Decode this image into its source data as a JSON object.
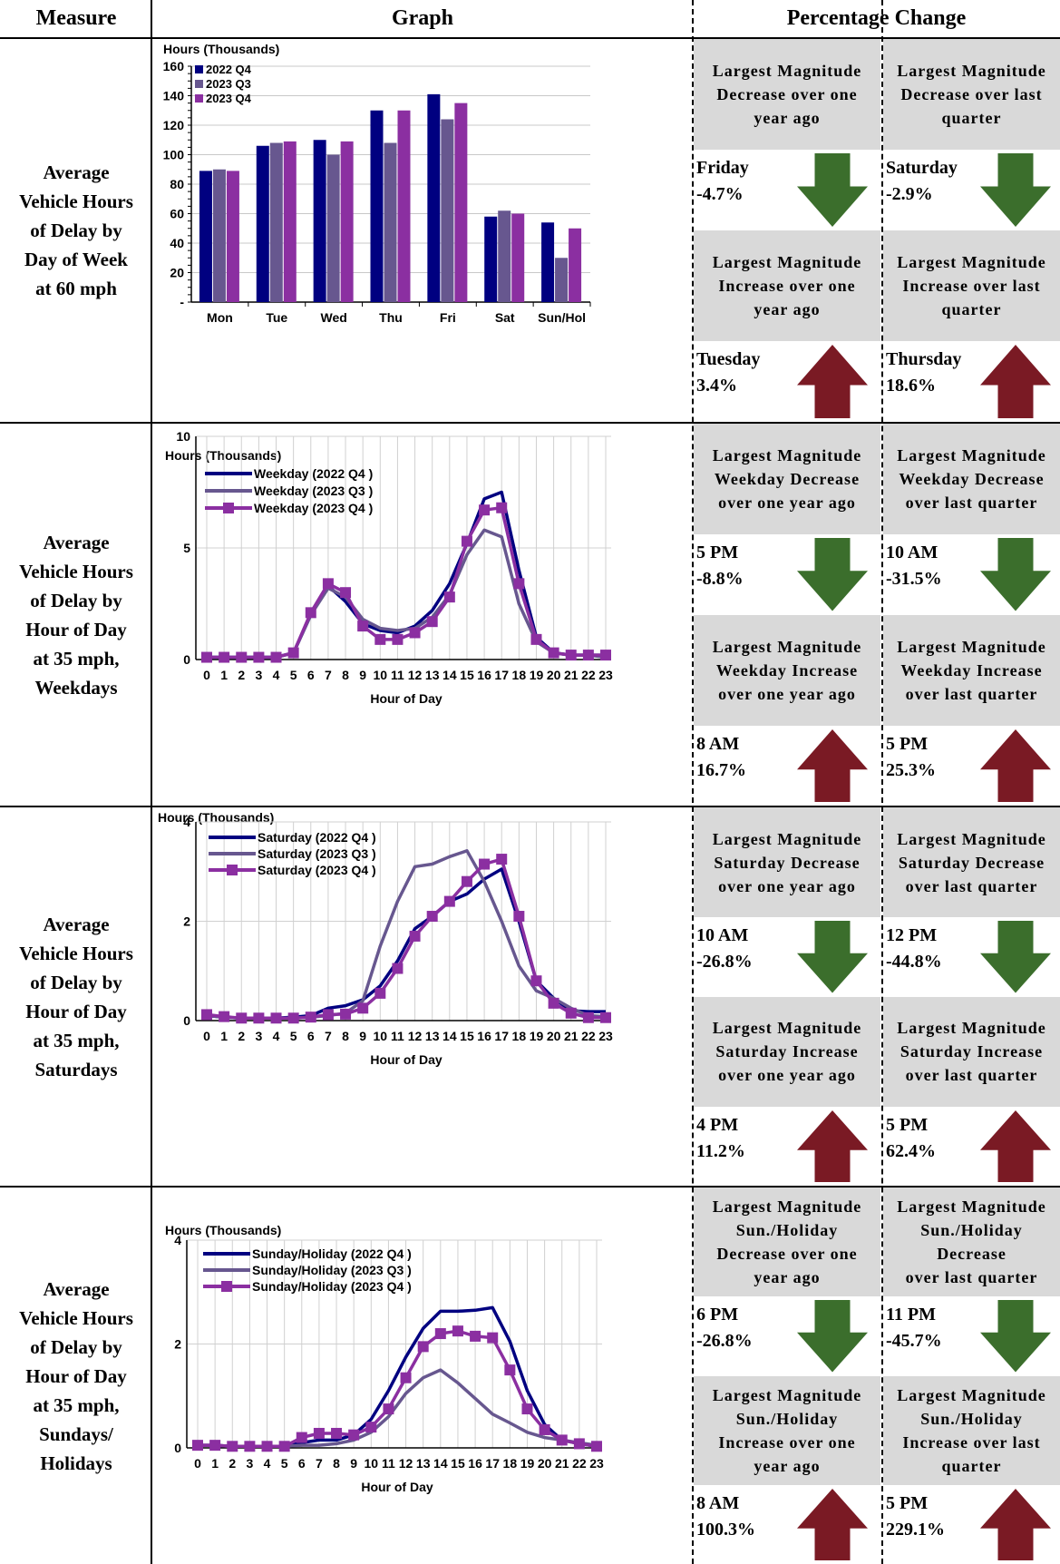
{
  "header": {
    "measure": "Measure",
    "graph": "Graph",
    "percentage": "Percentage Change"
  },
  "colors": {
    "q4_2022": "#000080",
    "q3_2023": "#67578f",
    "q4_2023": "#8b2fa1",
    "down": "#3b6e2c",
    "up": "#7a1a24",
    "box": "#d9d9d9"
  },
  "rows": [
    {
      "measure": "Average\nVehicle Hours\nof Delay by\nDay of Week\nat 60 mph",
      "boxes": [
        {
          "label": "Largest Magnitude\nDecrease over one\nyear ago",
          "value": "Friday\n-4.7%",
          "arrow": "down-arrow-icon"
        },
        {
          "label": "Largest Magnitude\nDecrease over last\nquarter",
          "value": "Saturday\n-2.9%",
          "arrow": "down-arrow-icon"
        },
        {
          "label": "Largest Magnitude\nIncrease over one\nyear ago",
          "value": "Tuesday\n3.4%",
          "arrow": "up-arrow-icon"
        },
        {
          "label": "Largest Magnitude\nIncrease over last\nquarter",
          "value": "Thursday\n18.6%",
          "arrow": "up-arrow-icon"
        }
      ]
    },
    {
      "measure": "Average\nVehicle Hours\nof Delay by\nHour of Day\nat 35 mph,\nWeekdays",
      "boxes": [
        {
          "label": "Largest Magnitude\nWeekday Decrease\nover one year ago",
          "value": "5 PM\n-8.8%",
          "arrow": "down-arrow-icon"
        },
        {
          "label": "Largest Magnitude\nWeekday Decrease\nover last quarter",
          "value": "10 AM\n-31.5%",
          "arrow": "down-arrow-icon"
        },
        {
          "label": "Largest Magnitude\nWeekday Increase\nover one year ago",
          "value": "8 AM\n16.7%",
          "arrow": "up-arrow-icon"
        },
        {
          "label": "Largest Magnitude\nWeekday Increase\nover last quarter",
          "value": "5 PM\n25.3%",
          "arrow": "up-arrow-icon"
        }
      ]
    },
    {
      "measure": "Average\nVehicle Hours\nof Delay by\nHour of Day\nat 35 mph,\nSaturdays",
      "boxes": [
        {
          "label": "Largest Magnitude\nSaturday Decrease\nover one year ago",
          "value": "10 AM\n-26.8%",
          "arrow": "down-arrow-icon"
        },
        {
          "label": "Largest Magnitude\nSaturday Decrease\nover last quarter",
          "value": "12 PM\n-44.8%",
          "arrow": "down-arrow-icon"
        },
        {
          "label": "Largest Magnitude\nSaturday Increase\nover one year ago",
          "value": "4 PM\n11.2%",
          "arrow": "up-arrow-icon"
        },
        {
          "label": "Largest Magnitude\nSaturday Increase\nover last quarter",
          "value": "5 PM\n62.4%",
          "arrow": "up-arrow-icon"
        }
      ]
    },
    {
      "measure": "Average\nVehicle Hours\nof Delay by\nHour of Day\nat 35 mph,\nSundays/\nHolidays",
      "boxes": [
        {
          "label": "Largest Magnitude\nSun./Holiday\nDecrease over one\nyear ago",
          "value": "6 PM\n-26.8%",
          "arrow": "down-arrow-icon"
        },
        {
          "label": "Largest Magnitude\nSun./Holiday\nDecrease\nover last quarter",
          "value": "11 PM\n-45.7%",
          "arrow": "down-arrow-icon"
        },
        {
          "label": "Largest Magnitude\nSun./Holiday\nIncrease over one\nyear ago",
          "value": "8 AM\n100.3%",
          "arrow": "up-arrow-icon"
        },
        {
          "label": "Largest Magnitude\nSun./Holiday\nIncrease over last\nquarter",
          "value": "5 PM\n229.1%",
          "arrow": "up-arrow-icon"
        }
      ]
    }
  ],
  "chart_data": [
    {
      "type": "bar",
      "ylabel": "Hours (Thousands)",
      "categories": [
        "Mon",
        "Tue",
        "Wed",
        "Thu",
        "Fri",
        "Sat",
        "Sun/Hol"
      ],
      "ylim": [
        0,
        160
      ],
      "yticks": [
        "-",
        "20",
        "40",
        "60",
        "80",
        "100",
        "120",
        "140",
        "160"
      ],
      "grid": true,
      "legend": "top-left",
      "series": [
        {
          "name": "2022 Q4",
          "values": [
            89,
            106,
            110,
            130,
            141,
            58,
            54
          ]
        },
        {
          "name": "2023 Q3",
          "values": [
            90,
            108,
            100,
            108,
            124,
            62,
            30
          ]
        },
        {
          "name": "2023 Q4",
          "values": [
            89,
            109,
            109,
            130,
            135,
            60,
            50
          ]
        }
      ]
    },
    {
      "type": "line",
      "ylabel": "Hours (Thousands)",
      "xlabel": "Hour of Day",
      "x": [
        0,
        1,
        2,
        3,
        4,
        5,
        6,
        7,
        8,
        9,
        10,
        11,
        12,
        13,
        14,
        15,
        16,
        17,
        18,
        19,
        20,
        21,
        22,
        23
      ],
      "ylim": [
        0,
        10
      ],
      "yticks": [
        "0",
        "5",
        "10"
      ],
      "grid": true,
      "legend": "top-left",
      "series": [
        {
          "name": "Weekday (2022 Q4 )",
          "values": [
            0.1,
            0.1,
            0.1,
            0.1,
            0.1,
            0.3,
            2.0,
            3.3,
            2.6,
            1.6,
            1.3,
            1.2,
            1.5,
            2.2,
            3.4,
            5.2,
            7.2,
            7.5,
            4.0,
            1.0,
            0.3,
            0.2,
            0.2,
            0.2
          ]
        },
        {
          "name": "Weekday (2023 Q3 )",
          "values": [
            0.1,
            0.1,
            0.1,
            0.1,
            0.1,
            0.3,
            2.0,
            3.2,
            2.8,
            1.8,
            1.4,
            1.3,
            1.4,
            1.9,
            2.9,
            4.7,
            5.8,
            5.5,
            2.5,
            0.8,
            0.3,
            0.2,
            0.2,
            0.1
          ]
        },
        {
          "name": "Weekday (2023 Q4 )",
          "values": [
            0.1,
            0.1,
            0.1,
            0.1,
            0.1,
            0.3,
            2.1,
            3.4,
            3.0,
            1.5,
            0.9,
            0.9,
            1.2,
            1.7,
            2.8,
            5.3,
            6.7,
            6.8,
            3.4,
            0.9,
            0.3,
            0.2,
            0.2,
            0.2
          ]
        }
      ]
    },
    {
      "type": "line",
      "ylabel": "Hours (Thousands)",
      "xlabel": "Hour of Day",
      "x": [
        0,
        1,
        2,
        3,
        4,
        5,
        6,
        7,
        8,
        9,
        10,
        11,
        12,
        13,
        14,
        15,
        16,
        17,
        18,
        19,
        20,
        21,
        22,
        23
      ],
      "ylim": [
        0,
        4
      ],
      "yticks": [
        "0",
        "2",
        "4"
      ],
      "grid": true,
      "legend": "top-left",
      "series": [
        {
          "name": "Saturday (2022 Q4 )",
          "values": [
            0.1,
            0.07,
            0.05,
            0.05,
            0.05,
            0.07,
            0.1,
            0.25,
            0.3,
            0.42,
            0.7,
            1.2,
            1.85,
            2.1,
            2.4,
            2.55,
            2.85,
            3.05,
            2.0,
            0.8,
            0.45,
            0.2,
            0.18,
            0.18
          ]
        },
        {
          "name": "Saturday (2023 Q3 )",
          "values": [
            0.1,
            0.07,
            0.05,
            0.05,
            0.05,
            0.05,
            0.07,
            0.1,
            0.15,
            0.4,
            1.5,
            2.4,
            3.1,
            3.15,
            3.3,
            3.42,
            2.8,
            2.0,
            1.1,
            0.6,
            0.45,
            0.25,
            0.1,
            0.08
          ]
        },
        {
          "name": "Saturday (2023 Q4 )",
          "values": [
            0.12,
            0.08,
            0.05,
            0.05,
            0.05,
            0.05,
            0.07,
            0.12,
            0.13,
            0.25,
            0.55,
            1.05,
            1.7,
            2.1,
            2.4,
            2.8,
            3.15,
            3.25,
            2.1,
            0.8,
            0.35,
            0.15,
            0.06,
            0.06
          ]
        }
      ]
    },
    {
      "type": "line",
      "ylabel": "Hours (Thousands)",
      "xlabel": "Hour of Day",
      "x": [
        0,
        1,
        2,
        3,
        4,
        5,
        6,
        7,
        8,
        9,
        10,
        11,
        12,
        13,
        14,
        15,
        16,
        17,
        18,
        19,
        20,
        21,
        22,
        23
      ],
      "ylim": [
        0,
        4
      ],
      "yticks": [
        "0",
        "2",
        "4"
      ],
      "grid": true,
      "legend": "top-left",
      "series": [
        {
          "name": "Sunday/Holiday (2022 Q4 )",
          "values": [
            0.05,
            0.05,
            0.03,
            0.03,
            0.03,
            0.03,
            0.1,
            0.15,
            0.15,
            0.25,
            0.55,
            1.1,
            1.75,
            2.3,
            2.63,
            2.63,
            2.65,
            2.7,
            2.05,
            1.1,
            0.45,
            0.15,
            0.08,
            0.03
          ]
        },
        {
          "name": "Sunday/Holiday (2023 Q3 )",
          "values": [
            0.05,
            0.05,
            0.03,
            0.03,
            0.03,
            0.03,
            0.05,
            0.05,
            0.08,
            0.15,
            0.3,
            0.6,
            1.05,
            1.35,
            1.5,
            1.25,
            0.95,
            0.65,
            0.48,
            0.3,
            0.2,
            0.15,
            0.1,
            0.05
          ]
        },
        {
          "name": "Sunday/Holiday (2023 Q4 )",
          "values": [
            0.05,
            0.05,
            0.03,
            0.03,
            0.03,
            0.03,
            0.2,
            0.28,
            0.28,
            0.25,
            0.4,
            0.75,
            1.35,
            1.95,
            2.2,
            2.25,
            2.15,
            2.12,
            1.5,
            0.75,
            0.35,
            0.15,
            0.08,
            0.03
          ]
        }
      ]
    }
  ]
}
